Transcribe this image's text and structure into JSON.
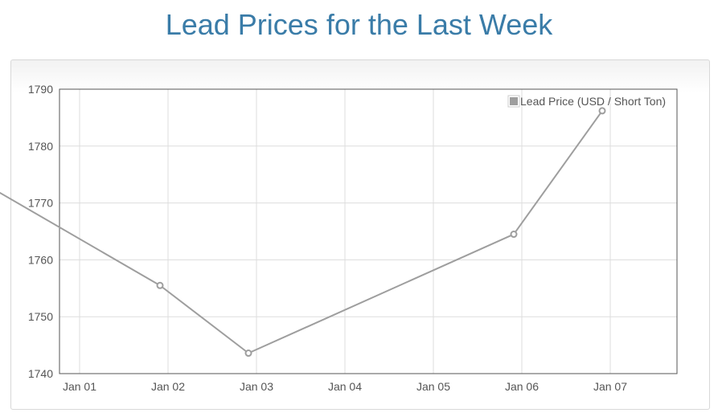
{
  "page": {
    "title": "Lead Prices for the Last Week"
  },
  "chart_data": {
    "type": "line",
    "title": "Lead Prices for the Last Week",
    "xlabel": "",
    "ylabel": "",
    "x_ticks": [
      "Jan 01",
      "Jan 02",
      "Jan 03",
      "Jan 04",
      "Jan 05",
      "Jan 06",
      "Jan 07"
    ],
    "ylim": [
      1740,
      1790
    ],
    "y_ticks": [
      1740,
      1750,
      1760,
      1770,
      1780,
      1790
    ],
    "grid": true,
    "legend_position": "top-right",
    "series": [
      {
        "name": "Lead Price (USD / Short Ton)",
        "color": "#9e9e9e",
        "points": [
          {
            "x": "Dec 31",
            "y": 1773.5
          },
          {
            "x": "Jan 02",
            "y": 1755.5
          },
          {
            "x": "Jan 03",
            "y": 1743.6
          },
          {
            "x": "Jan 06",
            "y": 1764.5
          },
          {
            "x": "Jan 07",
            "y": 1786.2
          }
        ]
      }
    ]
  }
}
